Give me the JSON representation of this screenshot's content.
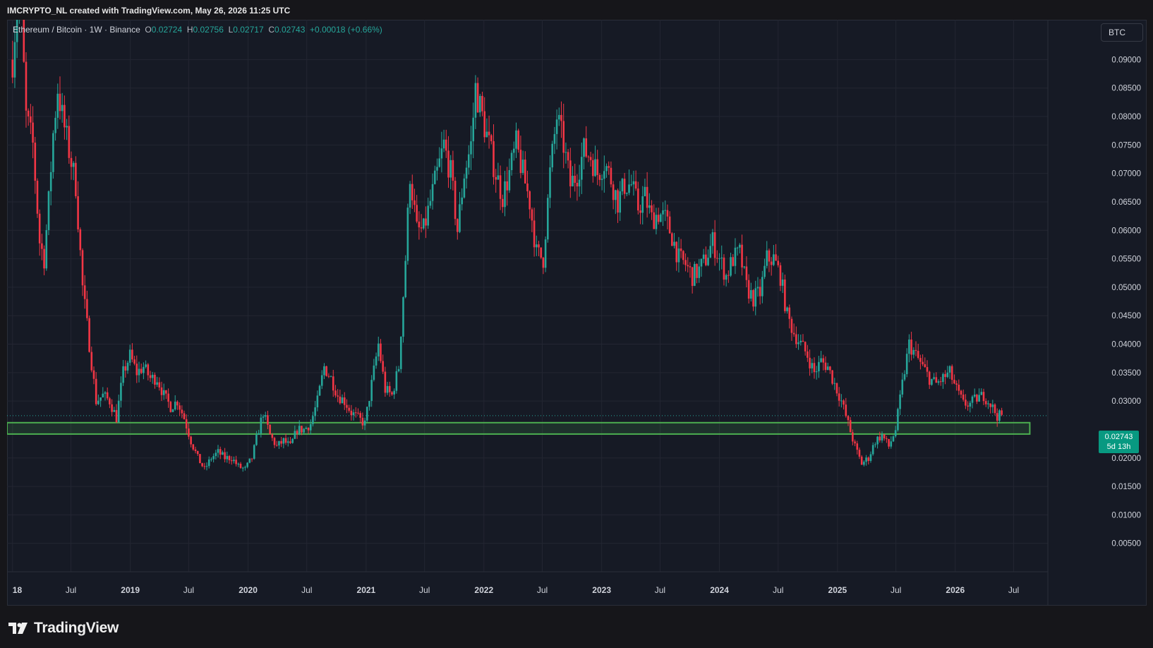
{
  "header": {
    "credit": "IMCRYPTO_NL created with TradingView.com, May 26, 2026 11:25 UTC"
  },
  "legend": {
    "symbol": "Ethereum / Bitcoin · 1W · Binance",
    "open_label": "O",
    "open": "0.02724",
    "high_label": "H",
    "high": "0.02756",
    "low_label": "L",
    "low": "0.02717",
    "close_label": "C",
    "close": "0.02743",
    "change": "+0.00018 (+0.66%)"
  },
  "currency_button": "BTC",
  "price_badge": {
    "price": "0.02743",
    "countdown": "5d 13h"
  },
  "brand": {
    "name": "TradingView",
    "logo_icon": "tradingview-logo-icon"
  },
  "colors": {
    "up": "#26a69a",
    "down": "#f23645",
    "zone": "#4caf50",
    "badge": "#089981"
  },
  "chart_data": {
    "type": "candlestick",
    "title": "Ethereum / Bitcoin · 1W · Binance",
    "yaxis_side": "right",
    "y_ticks": [
      "0.09000",
      "0.08500",
      "0.08000",
      "0.07500",
      "0.07000",
      "0.06500",
      "0.06000",
      "0.05500",
      "0.05000",
      "0.04500",
      "0.04000",
      "0.03500",
      "0.03000",
      "0.02743",
      "0.02000",
      "0.01500",
      "0.01000",
      "0.00500"
    ],
    "y_tick_values": [
      0.09,
      0.085,
      0.08,
      0.075,
      0.07,
      0.065,
      0.06,
      0.055,
      0.05,
      0.045,
      0.04,
      0.035,
      0.03,
      0.02743,
      0.02,
      0.015,
      0.01,
      0.005
    ],
    "x_ticks": [
      {
        "label": "18",
        "date": "2018-01-01",
        "bold": true
      },
      {
        "label": "Jul",
        "date": "2018-07-01",
        "bold": false
      },
      {
        "label": "2019",
        "date": "2019-01-01",
        "bold": true
      },
      {
        "label": "Jul",
        "date": "2019-07-01",
        "bold": false
      },
      {
        "label": "2020",
        "date": "2020-01-01",
        "bold": true
      },
      {
        "label": "Jul",
        "date": "2020-07-01",
        "bold": false
      },
      {
        "label": "2021",
        "date": "2021-01-01",
        "bold": true
      },
      {
        "label": "Jul",
        "date": "2021-07-01",
        "bold": false
      },
      {
        "label": "2022",
        "date": "2022-01-01",
        "bold": true
      },
      {
        "label": "Jul",
        "date": "2022-07-01",
        "bold": false
      },
      {
        "label": "2023",
        "date": "2023-01-01",
        "bold": true
      },
      {
        "label": "Jul",
        "date": "2023-07-01",
        "bold": false
      },
      {
        "label": "2024",
        "date": "2024-01-01",
        "bold": true
      },
      {
        "label": "Jul",
        "date": "2024-07-01",
        "bold": false
      },
      {
        "label": "2025",
        "date": "2025-01-01",
        "bold": true
      },
      {
        "label": "Jul",
        "date": "2025-07-01",
        "bold": false
      },
      {
        "label": "2026",
        "date": "2026-01-01",
        "bold": true
      },
      {
        "label": "Jul",
        "date": "2026-07-01",
        "bold": false
      }
    ],
    "ylim": [
      0.0,
      0.097
    ],
    "xlim": [
      "2017-12-15",
      "2026-10-15"
    ],
    "grid": true,
    "last_price": 0.02743,
    "support_zone": {
      "low": 0.0242,
      "high": 0.0262,
      "from": "2017-12-15",
      "to": "2026-08-20"
    },
    "close_path": [
      [
        "2018-01-01",
        0.09
      ],
      [
        "2018-01-22",
        0.105
      ],
      [
        "2018-02-12",
        0.08
      ],
      [
        "2018-03-05",
        0.075
      ],
      [
        "2018-03-26",
        0.058
      ],
      [
        "2018-04-09",
        0.055
      ],
      [
        "2018-04-23",
        0.065
      ],
      [
        "2018-05-07",
        0.077
      ],
      [
        "2018-05-21",
        0.085
      ],
      [
        "2018-06-04",
        0.08
      ],
      [
        "2018-06-25",
        0.074
      ],
      [
        "2018-07-16",
        0.068
      ],
      [
        "2018-08-06",
        0.05
      ],
      [
        "2018-08-27",
        0.04
      ],
      [
        "2018-09-17",
        0.03
      ],
      [
        "2018-10-08",
        0.031
      ],
      [
        "2018-10-29",
        0.03
      ],
      [
        "2018-11-19",
        0.027
      ],
      [
        "2018-12-10",
        0.035
      ],
      [
        "2018-12-31",
        0.038
      ],
      [
        "2019-01-21",
        0.035
      ],
      [
        "2019-02-11",
        0.036
      ],
      [
        "2019-03-04",
        0.034
      ],
      [
        "2019-03-25",
        0.034
      ],
      [
        "2019-04-15",
        0.031
      ],
      [
        "2019-05-06",
        0.029
      ],
      [
        "2019-05-27",
        0.03
      ],
      [
        "2019-06-17",
        0.027
      ],
      [
        "2019-07-08",
        0.023
      ],
      [
        "2019-07-29",
        0.02
      ],
      [
        "2019-08-19",
        0.018
      ],
      [
        "2019-09-09",
        0.02
      ],
      [
        "2019-09-30",
        0.021
      ],
      [
        "2019-10-21",
        0.02
      ],
      [
        "2019-11-11",
        0.02
      ],
      [
        "2019-12-02",
        0.0185
      ],
      [
        "2019-12-23",
        0.018
      ],
      [
        "2020-01-13",
        0.02
      ],
      [
        "2020-02-03",
        0.025
      ],
      [
        "2020-02-17",
        0.028
      ],
      [
        "2020-03-09",
        0.024
      ],
      [
        "2020-03-30",
        0.022
      ],
      [
        "2020-04-20",
        0.023
      ],
      [
        "2020-05-11",
        0.022
      ],
      [
        "2020-06-01",
        0.025
      ],
      [
        "2020-06-22",
        0.025
      ],
      [
        "2020-07-13",
        0.026
      ],
      [
        "2020-08-03",
        0.03
      ],
      [
        "2020-08-24",
        0.036
      ],
      [
        "2020-09-14",
        0.034
      ],
      [
        "2020-10-05",
        0.031
      ],
      [
        "2020-10-26",
        0.03
      ],
      [
        "2020-11-16",
        0.028
      ],
      [
        "2020-12-07",
        0.027
      ],
      [
        "2020-12-28",
        0.026
      ],
      [
        "2021-01-18",
        0.033
      ],
      [
        "2021-02-08",
        0.04
      ],
      [
        "2021-03-01",
        0.032
      ],
      [
        "2021-03-22",
        0.031
      ],
      [
        "2021-04-12",
        0.036
      ],
      [
        "2021-05-03",
        0.055
      ],
      [
        "2021-05-17",
        0.07
      ],
      [
        "2021-06-07",
        0.06
      ],
      [
        "2021-06-28",
        0.06
      ],
      [
        "2021-07-19",
        0.065
      ],
      [
        "2021-08-09",
        0.07
      ],
      [
        "2021-08-30",
        0.075
      ],
      [
        "2021-09-20",
        0.07
      ],
      [
        "2021-10-11",
        0.06
      ],
      [
        "2021-11-01",
        0.07
      ],
      [
        "2021-11-22",
        0.075
      ],
      [
        "2021-12-06",
        0.085
      ],
      [
        "2021-12-27",
        0.08
      ],
      [
        "2022-01-17",
        0.075
      ],
      [
        "2022-02-07",
        0.07
      ],
      [
        "2022-02-28",
        0.066
      ],
      [
        "2022-03-21",
        0.07
      ],
      [
        "2022-04-11",
        0.075
      ],
      [
        "2022-05-02",
        0.07
      ],
      [
        "2022-05-23",
        0.065
      ],
      [
        "2022-06-13",
        0.056
      ],
      [
        "2022-07-04",
        0.055
      ],
      [
        "2022-07-25",
        0.07
      ],
      [
        "2022-08-15",
        0.08
      ],
      [
        "2022-09-05",
        0.075
      ],
      [
        "2022-09-26",
        0.068
      ],
      [
        "2022-10-17",
        0.07
      ],
      [
        "2022-11-07",
        0.074
      ],
      [
        "2022-11-28",
        0.073
      ],
      [
        "2022-12-19",
        0.07
      ],
      [
        "2023-01-09",
        0.072
      ],
      [
        "2023-01-30",
        0.069
      ],
      [
        "2023-02-20",
        0.065
      ],
      [
        "2023-03-13",
        0.068
      ],
      [
        "2023-04-03",
        0.068
      ],
      [
        "2023-04-24",
        0.064
      ],
      [
        "2023-05-15",
        0.066
      ],
      [
        "2023-06-05",
        0.062
      ],
      [
        "2023-06-26",
        0.063
      ],
      [
        "2023-07-17",
        0.062
      ],
      [
        "2023-08-07",
        0.059
      ],
      [
        "2023-08-28",
        0.055
      ],
      [
        "2023-09-18",
        0.054
      ],
      [
        "2023-10-09",
        0.052
      ],
      [
        "2023-10-30",
        0.053
      ],
      [
        "2023-11-20",
        0.055
      ],
      [
        "2023-12-11",
        0.058
      ],
      [
        "2024-01-01",
        0.055
      ],
      [
        "2024-01-22",
        0.052
      ],
      [
        "2024-02-12",
        0.055
      ],
      [
        "2024-03-04",
        0.056
      ],
      [
        "2024-03-25",
        0.05
      ],
      [
        "2024-04-15",
        0.048
      ],
      [
        "2024-05-06",
        0.049
      ],
      [
        "2024-05-27",
        0.055
      ],
      [
        "2024-06-17",
        0.055
      ],
      [
        "2024-07-08",
        0.052
      ],
      [
        "2024-07-29",
        0.045
      ],
      [
        "2024-08-19",
        0.042
      ],
      [
        "2024-09-09",
        0.04
      ],
      [
        "2024-09-30",
        0.038
      ],
      [
        "2024-10-21",
        0.035
      ],
      [
        "2024-11-11",
        0.037
      ],
      [
        "2024-12-02",
        0.036
      ],
      [
        "2024-12-23",
        0.033
      ],
      [
        "2025-01-13",
        0.03
      ],
      [
        "2025-02-03",
        0.026
      ],
      [
        "2025-02-24",
        0.022
      ],
      [
        "2025-03-17",
        0.019
      ],
      [
        "2025-04-07",
        0.02
      ],
      [
        "2025-04-28",
        0.023
      ],
      [
        "2025-05-19",
        0.024
      ],
      [
        "2025-06-09",
        0.022
      ],
      [
        "2025-06-30",
        0.025
      ],
      [
        "2025-07-21",
        0.033
      ],
      [
        "2025-08-11",
        0.04
      ],
      [
        "2025-09-01",
        0.038
      ],
      [
        "2025-09-22",
        0.036
      ],
      [
        "2025-10-13",
        0.034
      ],
      [
        "2025-11-03",
        0.033
      ],
      [
        "2025-11-24",
        0.034
      ],
      [
        "2025-12-15",
        0.035
      ],
      [
        "2026-01-05",
        0.032
      ],
      [
        "2026-01-26",
        0.0295
      ],
      [
        "2026-02-16",
        0.0295
      ],
      [
        "2026-03-09",
        0.0305
      ],
      [
        "2026-03-30",
        0.031
      ],
      [
        "2026-04-20",
        0.0295
      ],
      [
        "2026-05-11",
        0.0274
      ],
      [
        "2026-05-25",
        0.02743
      ]
    ]
  }
}
